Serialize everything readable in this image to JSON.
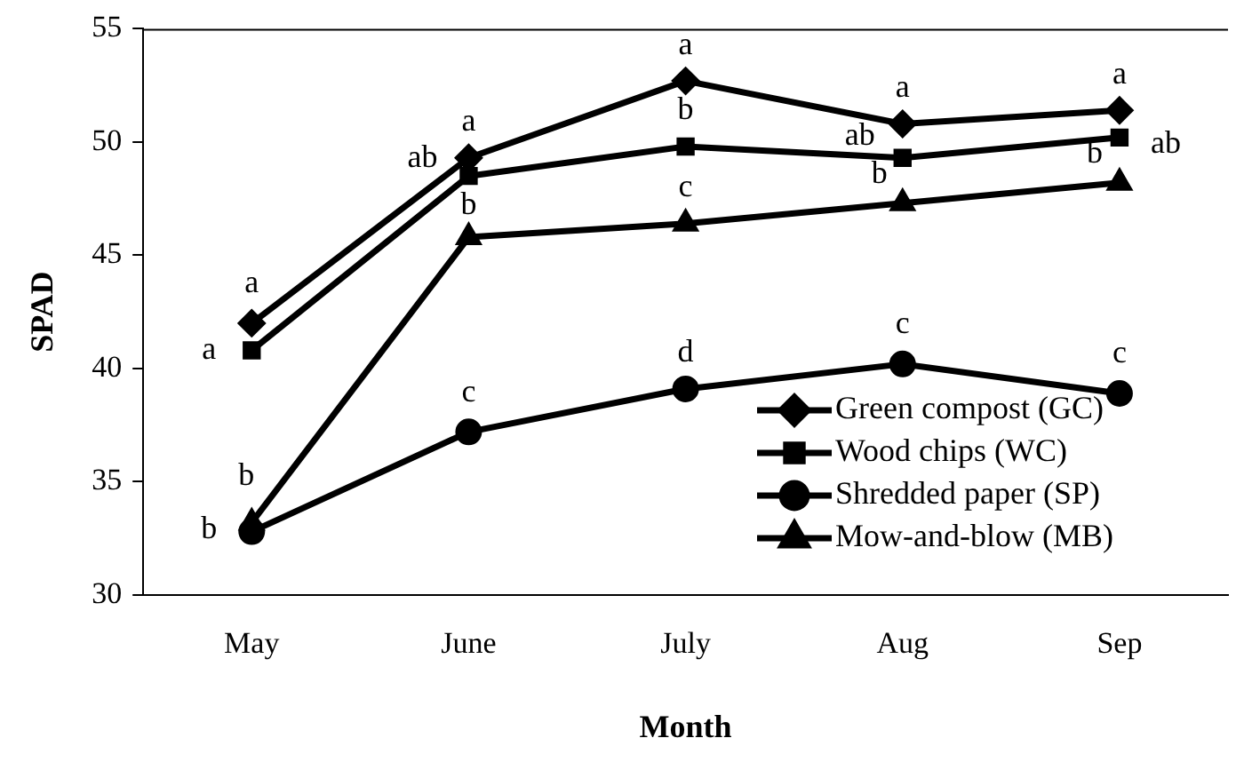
{
  "chart_data": {
    "type": "line",
    "xlabel": "Month",
    "ylabel": "SPAD",
    "categories": [
      "May",
      "June",
      "July",
      "Aug",
      "Sep"
    ],
    "ylim": [
      30,
      55
    ],
    "yticks": [
      30,
      35,
      40,
      45,
      50,
      55
    ],
    "grid": false,
    "legend": "bottom right",
    "line_style": "solid",
    "series": [
      {
        "name": "Green compost (GC)",
        "color": "#000000",
        "marker": "diamond",
        "values": [
          42.0,
          49.3,
          52.7,
          50.8,
          51.4
        ]
      },
      {
        "name": "Wood chips (WC)",
        "color": "#000000",
        "marker": "square",
        "values": [
          40.8,
          48.5,
          49.8,
          49.3,
          50.2
        ]
      },
      {
        "name": "Shredded paper (SP)",
        "color": "#000000",
        "marker": "circle",
        "values": [
          32.8,
          37.2,
          39.1,
          40.2,
          38.9
        ]
      },
      {
        "name": "Mow-and-blow (MB)",
        "color": "#000000",
        "marker": "triangle",
        "values": [
          33.2,
          45.8,
          46.4,
          47.3,
          48.2
        ]
      }
    ],
    "annotations": [
      {
        "text": "a",
        "x": "May",
        "y": 42.0
      },
      {
        "text": "a",
        "x": "June",
        "y": 49.3
      },
      {
        "text": "a",
        "x": "July",
        "y": 52.7
      },
      {
        "text": "a",
        "x": "Aug",
        "y": 50.8
      },
      {
        "text": "a",
        "x": "Sep",
        "y": 51.4
      },
      {
        "text": "a",
        "x": "May",
        "y": 40.8
      },
      {
        "text": "ab",
        "x": "June",
        "y": 48.5
      },
      {
        "text": "b",
        "x": "July",
        "y": 49.8
      },
      {
        "text": "ab",
        "x": "Aug",
        "y": 49.3
      },
      {
        "text": "ab",
        "x": "Sep",
        "y": 50.2
      },
      {
        "text": "b",
        "x": "May",
        "y": 32.8
      },
      {
        "text": "c",
        "x": "June",
        "y": 37.2
      },
      {
        "text": "d",
        "x": "July",
        "y": 39.1
      },
      {
        "text": "c",
        "x": "Aug",
        "y": 40.2
      },
      {
        "text": "c",
        "x": "Sep",
        "y": 38.9
      },
      {
        "text": "b",
        "x": "May",
        "y": 33.2
      },
      {
        "text": "b",
        "x": "June",
        "y": 45.8
      },
      {
        "text": "c",
        "x": "July",
        "y": 46.4
      },
      {
        "text": "b",
        "x": "Aug",
        "y": 47.3
      },
      {
        "text": "b",
        "x": "Sep",
        "y": 48.2
      }
    ]
  }
}
